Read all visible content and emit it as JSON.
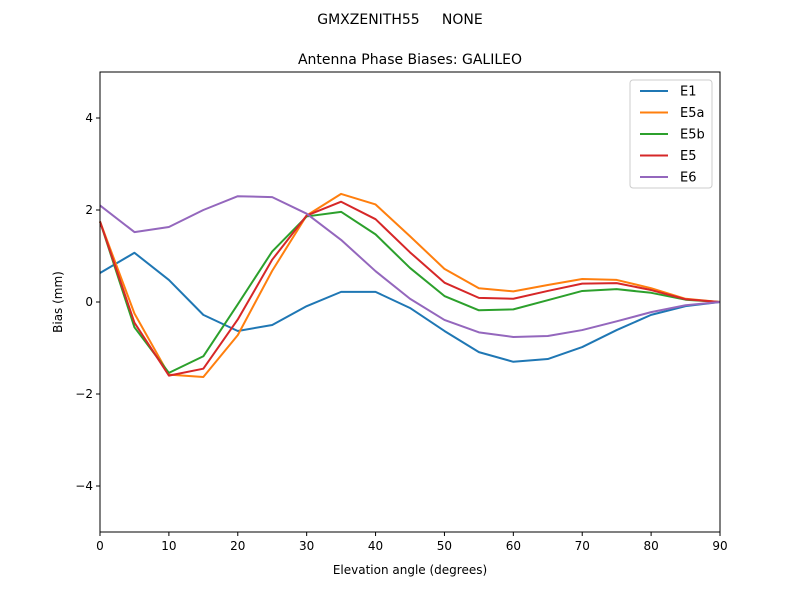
{
  "chart_data": {
    "type": "line",
    "suptitle": "GMXZENITH55     NONE",
    "title": "Antenna Phase Biases: GALILEO",
    "xlabel": "Elevation angle (degrees)",
    "ylabel": "Bias (mm)",
    "xlim": [
      0,
      90
    ],
    "ylim": [
      -5,
      5
    ],
    "xticks": [
      0,
      10,
      20,
      30,
      40,
      50,
      60,
      70,
      80,
      90
    ],
    "yticks": [
      -4,
      -2,
      0,
      2,
      4
    ],
    "ytick_labels": [
      "−4",
      "−2",
      "0",
      "2",
      "4"
    ],
    "grid": false,
    "legend_position": "top-right",
    "x": [
      0,
      5,
      10,
      15,
      20,
      25,
      30,
      35,
      40,
      45,
      50,
      55,
      60,
      65,
      70,
      75,
      80,
      85,
      90
    ],
    "series": [
      {
        "name": "E1",
        "color": "#1f77b4",
        "values": [
          0.63,
          1.07,
          0.48,
          -0.28,
          -0.63,
          -0.5,
          -0.09,
          0.22,
          0.22,
          -0.13,
          -0.63,
          -1.09,
          -1.3,
          -1.24,
          -0.98,
          -0.61,
          -0.28,
          -0.09,
          0
        ]
      },
      {
        "name": "E5a",
        "color": "#ff7f0e",
        "values": [
          1.75,
          -0.25,
          -1.58,
          -1.63,
          -0.72,
          0.68,
          1.88,
          2.35,
          2.12,
          1.43,
          0.72,
          0.3,
          0.23,
          0.37,
          0.5,
          0.48,
          0.3,
          0.07,
          0
        ]
      },
      {
        "name": "E5b",
        "color": "#2ca02c",
        "values": [
          1.75,
          -0.55,
          -1.54,
          -1.18,
          -0.05,
          1.1,
          1.86,
          1.96,
          1.47,
          0.74,
          0.13,
          -0.18,
          -0.16,
          0.04,
          0.24,
          0.28,
          0.2,
          0.05,
          0
        ]
      },
      {
        "name": "E5",
        "color": "#d62728",
        "values": [
          1.75,
          -0.45,
          -1.6,
          -1.45,
          -0.38,
          0.92,
          1.88,
          2.18,
          1.8,
          1.08,
          0.42,
          0.09,
          0.07,
          0.24,
          0.4,
          0.41,
          0.26,
          0.06,
          0
        ]
      },
      {
        "name": "E6",
        "color": "#9467bd",
        "values": [
          2.1,
          1.52,
          1.63,
          2.0,
          2.3,
          2.28,
          1.92,
          1.35,
          0.67,
          0.07,
          -0.39,
          -0.66,
          -0.76,
          -0.74,
          -0.61,
          -0.42,
          -0.22,
          -0.07,
          0
        ]
      }
    ]
  }
}
